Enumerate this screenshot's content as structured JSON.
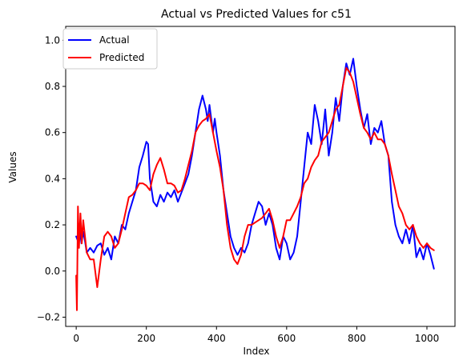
{
  "chart_data": {
    "type": "line",
    "title": "Actual vs Predicted Values for c51",
    "xlabel": "Index",
    "ylabel": "Values",
    "xlim": [
      -30,
      1080
    ],
    "ylim": [
      -0.24,
      1.06
    ],
    "xticks": [
      0,
      200,
      400,
      600,
      800,
      1000
    ],
    "yticks": [
      -0.2,
      0.0,
      0.2,
      0.4,
      0.6,
      0.8,
      1.0
    ],
    "legend_position": "top-left",
    "grid": false,
    "series": [
      {
        "name": "Actual",
        "color": "#0000ff",
        "points": [
          [
            0,
            0.15
          ],
          [
            5,
            0.13
          ],
          [
            10,
            0.18
          ],
          [
            15,
            0.12
          ],
          [
            20,
            0.17
          ],
          [
            25,
            0.13
          ],
          [
            30,
            0.08
          ],
          [
            40,
            0.1
          ],
          [
            50,
            0.08
          ],
          [
            60,
            0.11
          ],
          [
            70,
            0.12
          ],
          [
            80,
            0.07
          ],
          [
            90,
            0.1
          ],
          [
            100,
            0.05
          ],
          [
            110,
            0.15
          ],
          [
            120,
            0.12
          ],
          [
            130,
            0.2
          ],
          [
            140,
            0.18
          ],
          [
            150,
            0.25
          ],
          [
            160,
            0.3
          ],
          [
            170,
            0.35
          ],
          [
            180,
            0.45
          ],
          [
            190,
            0.5
          ],
          [
            200,
            0.56
          ],
          [
            205,
            0.55
          ],
          [
            210,
            0.4
          ],
          [
            220,
            0.3
          ],
          [
            230,
            0.28
          ],
          [
            240,
            0.33
          ],
          [
            250,
            0.3
          ],
          [
            260,
            0.34
          ],
          [
            270,
            0.32
          ],
          [
            280,
            0.35
          ],
          [
            290,
            0.3
          ],
          [
            300,
            0.34
          ],
          [
            310,
            0.38
          ],
          [
            320,
            0.42
          ],
          [
            330,
            0.5
          ],
          [
            340,
            0.6
          ],
          [
            350,
            0.7
          ],
          [
            360,
            0.76
          ],
          [
            370,
            0.7
          ],
          [
            375,
            0.65
          ],
          [
            380,
            0.72
          ],
          [
            390,
            0.6
          ],
          [
            395,
            0.66
          ],
          [
            400,
            0.6
          ],
          [
            410,
            0.5
          ],
          [
            420,
            0.35
          ],
          [
            430,
            0.25
          ],
          [
            440,
            0.15
          ],
          [
            450,
            0.1
          ],
          [
            460,
            0.07
          ],
          [
            470,
            0.1
          ],
          [
            480,
            0.08
          ],
          [
            490,
            0.12
          ],
          [
            500,
            0.2
          ],
          [
            510,
            0.25
          ],
          [
            520,
            0.3
          ],
          [
            530,
            0.28
          ],
          [
            540,
            0.2
          ],
          [
            550,
            0.25
          ],
          [
            560,
            0.2
          ],
          [
            570,
            0.1
          ],
          [
            580,
            0.05
          ],
          [
            590,
            0.15
          ],
          [
            600,
            0.12
          ],
          [
            610,
            0.05
          ],
          [
            620,
            0.08
          ],
          [
            630,
            0.15
          ],
          [
            640,
            0.3
          ],
          [
            650,
            0.45
          ],
          [
            660,
            0.6
          ],
          [
            670,
            0.55
          ],
          [
            680,
            0.72
          ],
          [
            690,
            0.65
          ],
          [
            700,
            0.55
          ],
          [
            710,
            0.7
          ],
          [
            720,
            0.5
          ],
          [
            730,
            0.6
          ],
          [
            740,
            0.75
          ],
          [
            750,
            0.65
          ],
          [
            760,
            0.8
          ],
          [
            770,
            0.9
          ],
          [
            780,
            0.85
          ],
          [
            790,
            0.92
          ],
          [
            800,
            0.8
          ],
          [
            810,
            0.7
          ],
          [
            820,
            0.62
          ],
          [
            830,
            0.68
          ],
          [
            840,
            0.55
          ],
          [
            850,
            0.62
          ],
          [
            860,
            0.6
          ],
          [
            870,
            0.65
          ],
          [
            880,
            0.55
          ],
          [
            890,
            0.5
          ],
          [
            900,
            0.3
          ],
          [
            910,
            0.2
          ],
          [
            920,
            0.15
          ],
          [
            930,
            0.12
          ],
          [
            940,
            0.18
          ],
          [
            950,
            0.12
          ],
          [
            960,
            0.2
          ],
          [
            970,
            0.06
          ],
          [
            980,
            0.1
          ],
          [
            990,
            0.05
          ],
          [
            1000,
            0.12
          ],
          [
            1010,
            0.07
          ],
          [
            1020,
            0.01
          ]
        ]
      },
      {
        "name": "Predicted",
        "color": "#ff0000",
        "points": [
          [
            0,
            -0.02
          ],
          [
            2,
            -0.17
          ],
          [
            5,
            0.28
          ],
          [
            8,
            0.1
          ],
          [
            12,
            0.25
          ],
          [
            16,
            0.12
          ],
          [
            20,
            0.22
          ],
          [
            30,
            0.08
          ],
          [
            40,
            0.05
          ],
          [
            50,
            0.05
          ],
          [
            60,
            -0.07
          ],
          [
            70,
            0.05
          ],
          [
            80,
            0.15
          ],
          [
            90,
            0.17
          ],
          [
            100,
            0.15
          ],
          [
            110,
            0.1
          ],
          [
            120,
            0.12
          ],
          [
            130,
            0.18
          ],
          [
            140,
            0.25
          ],
          [
            150,
            0.32
          ],
          [
            160,
            0.33
          ],
          [
            170,
            0.35
          ],
          [
            180,
            0.38
          ],
          [
            190,
            0.38
          ],
          [
            200,
            0.37
          ],
          [
            210,
            0.35
          ],
          [
            220,
            0.42
          ],
          [
            230,
            0.46
          ],
          [
            240,
            0.49
          ],
          [
            250,
            0.44
          ],
          [
            260,
            0.38
          ],
          [
            270,
            0.38
          ],
          [
            280,
            0.37
          ],
          [
            290,
            0.34
          ],
          [
            300,
            0.35
          ],
          [
            310,
            0.4
          ],
          [
            320,
            0.46
          ],
          [
            330,
            0.52
          ],
          [
            340,
            0.6
          ],
          [
            350,
            0.63
          ],
          [
            360,
            0.65
          ],
          [
            370,
            0.66
          ],
          [
            380,
            0.68
          ],
          [
            390,
            0.6
          ],
          [
            400,
            0.52
          ],
          [
            410,
            0.45
          ],
          [
            420,
            0.35
          ],
          [
            430,
            0.2
          ],
          [
            440,
            0.1
          ],
          [
            450,
            0.05
          ],
          [
            460,
            0.03
          ],
          [
            470,
            0.07
          ],
          [
            480,
            0.15
          ],
          [
            490,
            0.2
          ],
          [
            500,
            0.2
          ],
          [
            510,
            0.21
          ],
          [
            520,
            0.22
          ],
          [
            530,
            0.23
          ],
          [
            540,
            0.25
          ],
          [
            550,
            0.27
          ],
          [
            560,
            0.22
          ],
          [
            570,
            0.15
          ],
          [
            580,
            0.1
          ],
          [
            590,
            0.15
          ],
          [
            600,
            0.22
          ],
          [
            610,
            0.22
          ],
          [
            620,
            0.25
          ],
          [
            630,
            0.28
          ],
          [
            640,
            0.32
          ],
          [
            650,
            0.38
          ],
          [
            660,
            0.4
          ],
          [
            670,
            0.45
          ],
          [
            680,
            0.48
          ],
          [
            690,
            0.5
          ],
          [
            700,
            0.56
          ],
          [
            710,
            0.58
          ],
          [
            720,
            0.6
          ],
          [
            730,
            0.65
          ],
          [
            740,
            0.7
          ],
          [
            750,
            0.72
          ],
          [
            760,
            0.8
          ],
          [
            770,
            0.88
          ],
          [
            780,
            0.86
          ],
          [
            790,
            0.82
          ],
          [
            800,
            0.75
          ],
          [
            810,
            0.68
          ],
          [
            820,
            0.62
          ],
          [
            830,
            0.6
          ],
          [
            840,
            0.57
          ],
          [
            850,
            0.6
          ],
          [
            860,
            0.57
          ],
          [
            870,
            0.57
          ],
          [
            880,
            0.55
          ],
          [
            890,
            0.5
          ],
          [
            900,
            0.42
          ],
          [
            910,
            0.35
          ],
          [
            920,
            0.28
          ],
          [
            930,
            0.25
          ],
          [
            940,
            0.2
          ],
          [
            950,
            0.18
          ],
          [
            960,
            0.2
          ],
          [
            970,
            0.15
          ],
          [
            980,
            0.12
          ],
          [
            990,
            0.1
          ],
          [
            1000,
            0.12
          ],
          [
            1010,
            0.1
          ],
          [
            1020,
            0.09
          ]
        ]
      }
    ]
  }
}
